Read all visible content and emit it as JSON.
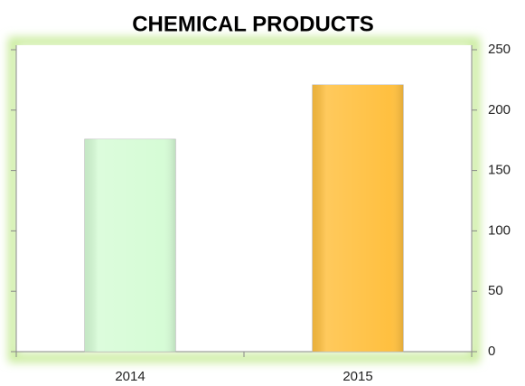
{
  "chart_data": {
    "type": "bar",
    "title": "CHEMICAL PRODUCTS",
    "categories": [
      "2014",
      "2015"
    ],
    "values": [
      176,
      221
    ],
    "colors": [
      "#d6fcd6",
      "#ffc040"
    ],
    "ylim": [
      0,
      250
    ],
    "yticks": [
      0,
      50,
      100,
      150,
      200,
      250
    ],
    "yaxis_position": "right",
    "grid": false
  }
}
